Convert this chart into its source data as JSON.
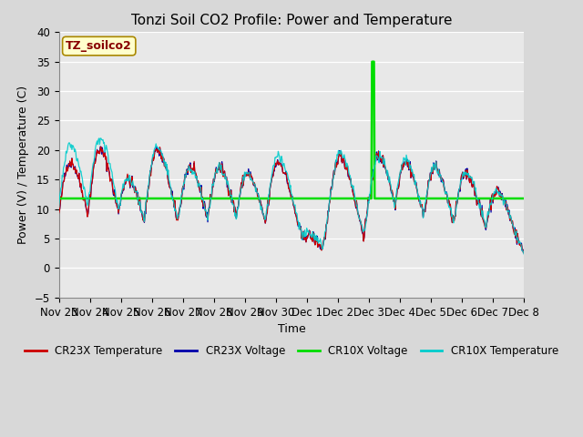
{
  "title": "Tonzi Soil CO2 Profile: Power and Temperature",
  "xlabel": "Time",
  "ylabel": "Power (V) / Temperature (C)",
  "ylim": [
    -5,
    40
  ],
  "background_color": "#d8d8d8",
  "plot_bg_color": "#e8e8e8",
  "annotation_text": "TZ_soilco2",
  "annotation_color": "#880000",
  "annotation_bg": "#ffffcc",
  "annotation_border": "#aa8800",
  "cr23x_temp_color": "#cc0000",
  "cr23x_volt_color": "#0000aa",
  "cr10x_volt_color": "#00dd00",
  "cr10x_temp_color": "#00cccc",
  "cr10x_volt_flat": 11.8,
  "xtick_labels": [
    "Nov 23",
    "Nov 24",
    "Nov 25",
    "Nov 26",
    "Nov 27",
    "Nov 28",
    "Nov 29",
    "Nov 30",
    "Dec 1",
    "Dec 2",
    "Dec 3",
    "Dec 4",
    "Dec 5",
    "Dec 6",
    "Dec 7",
    "Dec 8"
  ],
  "legend_labels": [
    "CR23X Temperature",
    "CR23X Voltage",
    "CR10X Voltage",
    "CR10X Temperature"
  ],
  "title_fontsize": 11,
  "axis_fontsize": 9,
  "tick_fontsize": 8.5
}
